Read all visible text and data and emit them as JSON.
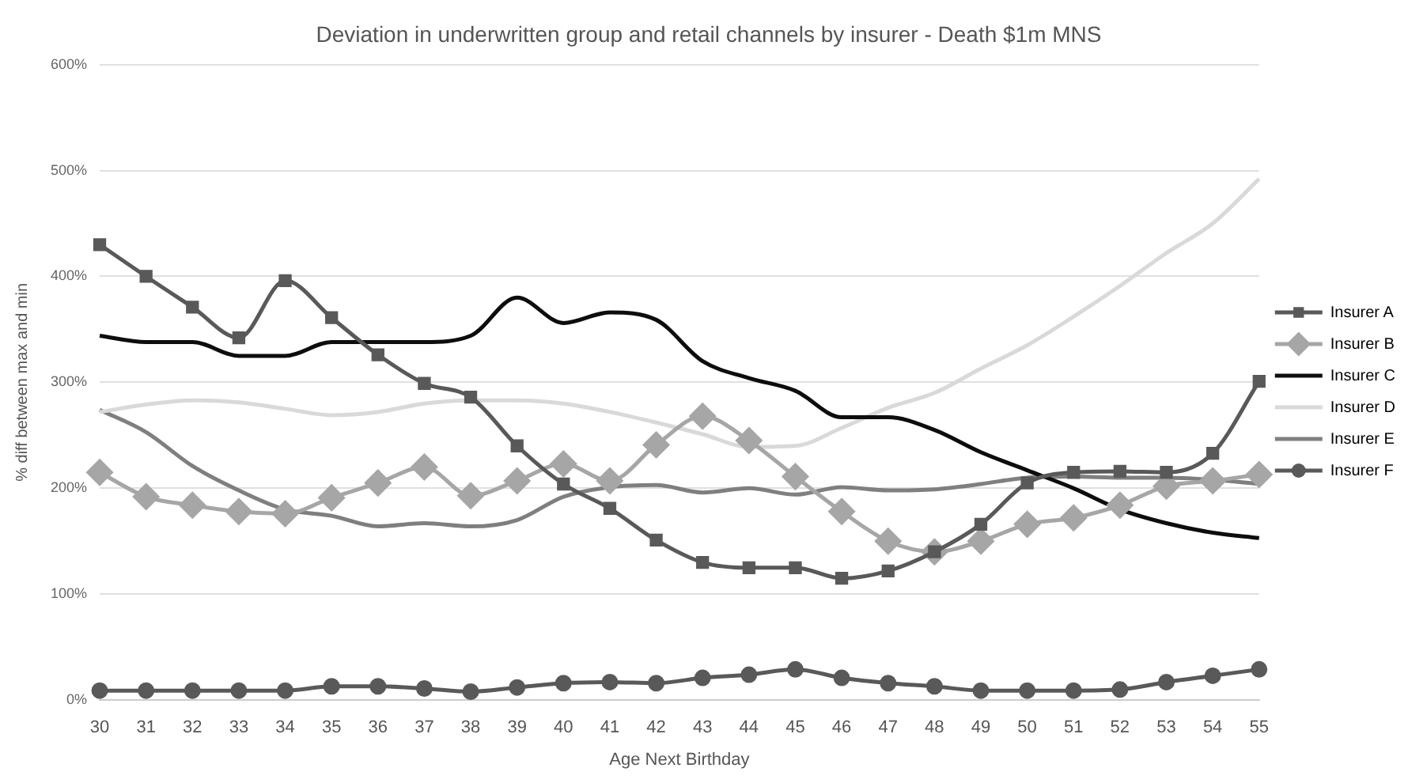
{
  "chart_data": {
    "type": "line",
    "title": "Deviation in underwritten group and retail channels by insurer - Death $1m MNS",
    "xlabel": "Age Next Birthday",
    "ylabel": "% diff between max and min",
    "categories": [
      "30",
      "31",
      "32",
      "33",
      "34",
      "35",
      "36",
      "37",
      "38",
      "39",
      "40",
      "41",
      "42",
      "43",
      "44",
      "45",
      "46",
      "47",
      "48",
      "49",
      "50",
      "51",
      "52",
      "53",
      "54",
      "55"
    ],
    "ylim": [
      0,
      600
    ],
    "yticks": [
      {
        "value": 0,
        "label": "0%"
      },
      {
        "value": 100,
        "label": "100%"
      },
      {
        "value": 200,
        "label": "200%"
      },
      {
        "value": 300,
        "label": "300%"
      },
      {
        "value": 400,
        "label": "400%"
      },
      {
        "value": 500,
        "label": "500%"
      },
      {
        "value": 600,
        "label": "600%"
      }
    ],
    "grid": "y",
    "legend": "right",
    "line_style": "solid",
    "series": [
      {
        "name": "Insurer A",
        "color": "#595959",
        "marker": "square",
        "values": [
          430,
          400,
          371,
          342,
          396,
          361,
          326,
          299,
          286,
          240,
          204,
          181,
          151,
          130,
          125,
          125,
          115,
          122,
          140,
          166,
          205,
          215,
          216,
          215,
          233,
          301
        ]
      },
      {
        "name": "Insurer B",
        "color": "#a6a6a6",
        "marker": "diamond",
        "values": [
          215,
          192,
          184,
          178,
          176,
          191,
          205,
          220,
          193,
          207,
          223,
          207,
          241,
          268,
          245,
          211,
          178,
          150,
          140,
          150,
          166,
          172,
          184,
          202,
          207,
          213
        ]
      },
      {
        "name": "Insurer C",
        "color": "#0d0d0d",
        "marker": "none",
        "values": [
          344,
          338,
          338,
          325,
          325,
          338,
          338,
          338,
          344,
          380,
          356,
          366,
          359,
          320,
          304,
          292,
          267,
          267,
          255,
          234,
          217,
          200,
          180,
          167,
          158,
          153
        ]
      },
      {
        "name": "Insurer D",
        "color": "#d9d9d9",
        "marker": "none",
        "values": [
          272,
          279,
          283,
          281,
          275,
          269,
          272,
          280,
          283,
          283,
          280,
          272,
          262,
          251,
          239,
          240,
          257,
          276,
          290,
          313,
          335,
          362,
          391,
          422,
          450,
          492
        ]
      },
      {
        "name": "Insurer E",
        "color": "#7f7f7f",
        "marker": "none",
        "values": [
          274,
          253,
          221,
          198,
          180,
          174,
          164,
          167,
          164,
          170,
          192,
          201,
          203,
          196,
          200,
          194,
          201,
          198,
          199,
          204,
          210,
          211,
          210,
          210,
          208,
          204
        ]
      },
      {
        "name": "Insurer F",
        "color": "#595959",
        "marker": "circle",
        "values": [
          9,
          9,
          9,
          9,
          9,
          13,
          13,
          11,
          8,
          12,
          16,
          17,
          16,
          21,
          24,
          29,
          21,
          16,
          13,
          9,
          9,
          9,
          10,
          17,
          23,
          29
        ]
      }
    ]
  }
}
